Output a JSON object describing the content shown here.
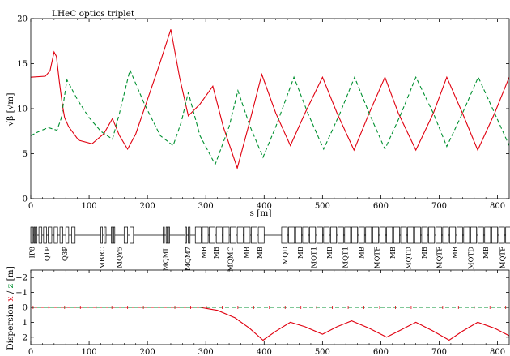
{
  "title": "LHeC optics triplet",
  "colors": {
    "beta_x": "#e0000f",
    "beta_y": "#009030",
    "dispersion_x": "#e0000f",
    "dispersion_y": "#009030",
    "frame": "#000000"
  },
  "chart_data": [
    {
      "type": "line",
      "ylabel": "√β  [√m]",
      "xlabel": "s [m]",
      "xlim": [
        0,
        820
      ],
      "ylim": [
        0,
        20
      ],
      "xticks": [
        0,
        100,
        200,
        300,
        400,
        500,
        600,
        700,
        800
      ],
      "yticks": [
        0,
        5,
        10,
        15,
        20
      ],
      "grid": false,
      "series": [
        {
          "line_style": "solid",
          "color": "#e0000f",
          "points": [
            [
              0,
              13.5
            ],
            [
              25,
              13.6
            ],
            [
              33,
              14.2
            ],
            [
              40,
              16.3
            ],
            [
              44,
              15.8
            ],
            [
              49,
              13.0
            ],
            [
              54,
              10.5
            ],
            [
              58,
              9.0
            ],
            [
              65,
              8.0
            ],
            [
              82,
              6.5
            ],
            [
              105,
              6.1
            ],
            [
              125,
              7.2
            ],
            [
              140,
              8.9
            ],
            [
              152,
              7.0
            ],
            [
              166,
              5.5
            ],
            [
              180,
              7.2
            ],
            [
              200,
              11.0
            ],
            [
              220,
              14.8
            ],
            [
              240,
              18.8
            ],
            [
              255,
              13.5
            ],
            [
              270,
              9.2
            ],
            [
              290,
              10.5
            ],
            [
              312,
              12.5
            ],
            [
              330,
              8.0
            ],
            [
              354,
              3.4
            ],
            [
              375,
              8.5
            ],
            [
              396,
              13.8
            ],
            [
              420,
              9.5
            ],
            [
              445,
              5.9
            ],
            [
              470,
              9.5
            ],
            [
              500,
              13.5
            ],
            [
              525,
              9.5
            ],
            [
              554,
              5.4
            ],
            [
              580,
              9.5
            ],
            [
              607,
              13.5
            ],
            [
              630,
              9.5
            ],
            [
              660,
              5.4
            ],
            [
              690,
              9.5
            ],
            [
              713,
              13.5
            ],
            [
              740,
              9.5
            ],
            [
              766,
              5.4
            ],
            [
              795,
              9.5
            ],
            [
              820,
              13.5
            ]
          ]
        },
        {
          "line_style": "dashed",
          "color": "#009030",
          "points": [
            [
              0,
              7.0
            ],
            [
              15,
              7.5
            ],
            [
              30,
              7.9
            ],
            [
              45,
              7.6
            ],
            [
              52,
              8.9
            ],
            [
              62,
              13.2
            ],
            [
              80,
              11.0
            ],
            [
              100,
              9.0
            ],
            [
              120,
              7.5
            ],
            [
              140,
              6.6
            ],
            [
              152,
              9.5
            ],
            [
              170,
              14.3
            ],
            [
              195,
              10.5
            ],
            [
              222,
              7.0
            ],
            [
              244,
              5.9
            ],
            [
              258,
              8.5
            ],
            [
              270,
              11.8
            ],
            [
              290,
              7.0
            ],
            [
              316,
              3.8
            ],
            [
              340,
              8.0
            ],
            [
              355,
              12.0
            ],
            [
              376,
              8.0
            ],
            [
              398,
              4.6
            ],
            [
              420,
              8.0
            ],
            [
              451,
              13.5
            ],
            [
              475,
              9.5
            ],
            [
              502,
              5.5
            ],
            [
              530,
              9.5
            ],
            [
              555,
              13.5
            ],
            [
              580,
              9.5
            ],
            [
              607,
              5.5
            ],
            [
              635,
              9.5
            ],
            [
              660,
              13.5
            ],
            [
              690,
              9.5
            ],
            [
              713,
              5.8
            ],
            [
              740,
              9.5
            ],
            [
              767,
              13.5
            ],
            [
              795,
              9.5
            ],
            [
              820,
              5.9
            ]
          ]
        }
      ]
    },
    {
      "type": "line",
      "ylabel_parts": [
        "Dispersion ",
        "x",
        " / ",
        "z",
        " [m]"
      ],
      "xlim": [
        0,
        820
      ],
      "ylim": [
        2.5,
        -2.5
      ],
      "xticks": [
        0,
        100,
        200,
        300,
        400,
        500,
        600,
        700,
        800
      ],
      "yticks": [
        -2,
        -1,
        0,
        1,
        2
      ],
      "grid": false,
      "series": [
        {
          "line_style": "solid",
          "color": "#e0000f",
          "points": [
            [
              0,
              0.0
            ],
            [
              290,
              0.0
            ],
            [
              320,
              0.2
            ],
            [
              350,
              0.7
            ],
            [
              375,
              1.4
            ],
            [
              398,
              2.2
            ],
            [
              420,
              1.6
            ],
            [
              445,
              1.0
            ],
            [
              470,
              1.3
            ],
            [
              500,
              1.8
            ],
            [
              525,
              1.3
            ],
            [
              550,
              0.9
            ],
            [
              580,
              1.4
            ],
            [
              610,
              2.0
            ],
            [
              635,
              1.5
            ],
            [
              660,
              1.0
            ],
            [
              690,
              1.6
            ],
            [
              717,
              2.2
            ],
            [
              740,
              1.6
            ],
            [
              766,
              1.0
            ],
            [
              795,
              1.4
            ],
            [
              820,
              1.9
            ]
          ]
        },
        {
          "line_style": "dashed",
          "color": "#009030",
          "points": [
            [
              0,
              0.0
            ],
            [
              820,
              0.0
            ]
          ]
        }
      ]
    }
  ],
  "lattice": {
    "labels": [
      {
        "s": 2,
        "text": "IP8"
      },
      {
        "s": 28,
        "text": "Q1P"
      },
      {
        "s": 58,
        "text": "Q3P"
      },
      {
        "s": 122,
        "text": "MBRC"
      },
      {
        "s": 152,
        "text": "MQY5"
      },
      {
        "s": 231,
        "text": "MQML"
      },
      {
        "s": 269,
        "text": "MQM7"
      },
      {
        "s": 297,
        "text": "MB"
      },
      {
        "s": 318,
        "text": "MB"
      },
      {
        "s": 342,
        "text": "MQMC"
      },
      {
        "s": 370,
        "text": "MB"
      },
      {
        "s": 393,
        "text": "MB"
      },
      {
        "s": 436,
        "text": "MQD"
      },
      {
        "s": 462,
        "text": "MB"
      },
      {
        "s": 485,
        "text": "MQT1"
      },
      {
        "s": 512,
        "text": "MB"
      },
      {
        "s": 539,
        "text": "MQT1"
      },
      {
        "s": 567,
        "text": "MB"
      },
      {
        "s": 593,
        "text": "MQTF"
      },
      {
        "s": 620,
        "text": "MB"
      },
      {
        "s": 647,
        "text": "MQTD"
      },
      {
        "s": 674,
        "text": "MB"
      },
      {
        "s": 700,
        "text": "MQTF"
      },
      {
        "s": 727,
        "text": "MB"
      },
      {
        "s": 754,
        "text": "MQTD"
      },
      {
        "s": 780,
        "text": "MB"
      },
      {
        "s": 808,
        "text": "MQTF"
      }
    ]
  }
}
